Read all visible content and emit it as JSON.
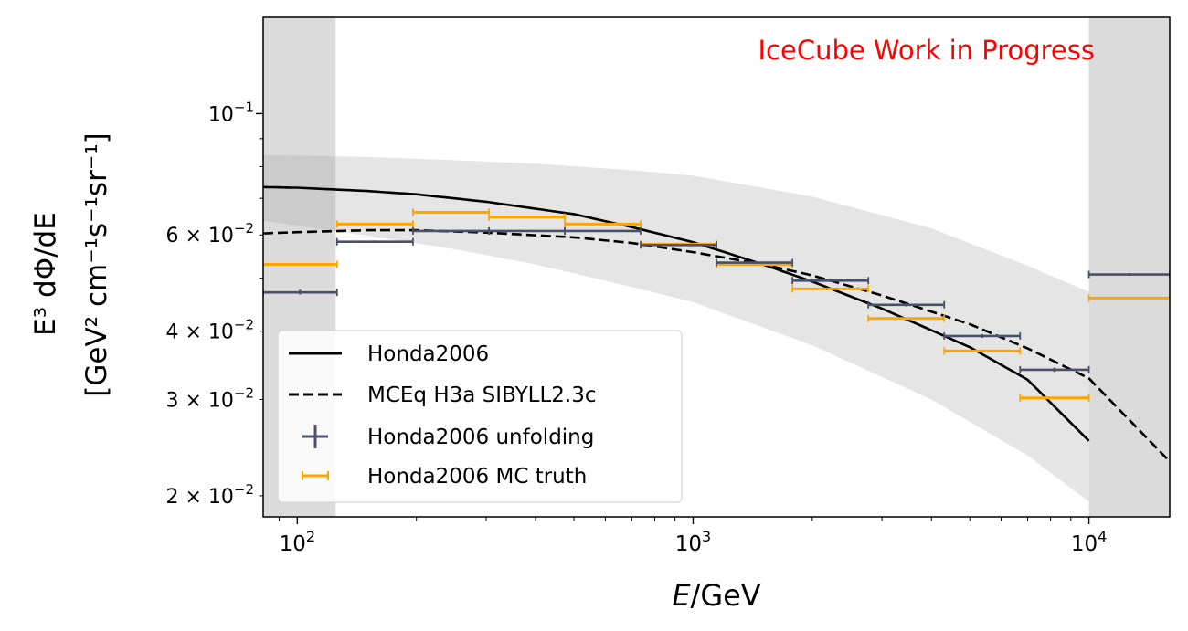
{
  "chart_data": {
    "type": "line",
    "annotation": "IceCube Work in Progress",
    "annotation_color": "#ff0000",
    "xlabel_italic": "E",
    "xlabel_rest": "/GeV",
    "ylabel_line1": "E³ dΦ/dE",
    "ylabel_line2": "[GeV² cm⁻¹s⁻¹sr⁻¹]",
    "xscale": "log",
    "yscale": "log",
    "xlim": [
      82,
      16000
    ],
    "ylim": [
      0.0183,
      0.15
    ],
    "x_ticks": [
      {
        "value": 100,
        "base": "10",
        "exp": "2"
      },
      {
        "value": 1000,
        "base": "10",
        "exp": "3"
      },
      {
        "value": 10000,
        "base": "10",
        "exp": "4"
      }
    ],
    "y_ticks": [
      {
        "value": 0.1,
        "label": "10",
        "exp": "−1"
      },
      {
        "value": 0.06,
        "label": "6 × 10",
        "exp": "−2"
      },
      {
        "value": 0.04,
        "label": "4 × 10",
        "exp": "−2"
      },
      {
        "value": 0.03,
        "label": "3 × 10",
        "exp": "−2"
      },
      {
        "value": 0.02,
        "label": "2 × 10",
        "exp": "−2"
      }
    ],
    "shaded_regions": [
      [
        82,
        125
      ],
      [
        10000,
        16000
      ]
    ],
    "uncertainty_band": {
      "x": [
        82,
        100,
        150,
        250,
        400,
        700,
        1000,
        2000,
        4000,
        7000,
        10000
      ],
      "lower": [
        0.0637,
        0.0624,
        0.0598,
        0.0565,
        0.053,
        0.0482,
        0.0452,
        0.0377,
        0.03,
        0.0237,
        0.0195
      ],
      "upper": [
        0.084,
        0.0838,
        0.0833,
        0.0822,
        0.081,
        0.0788,
        0.077,
        0.0705,
        0.0617,
        0.0527,
        0.0472
      ]
    },
    "series": [
      {
        "name": "Honda2006",
        "style": "solid",
        "color": "#000000",
        "x": [
          82,
          100,
          150,
          200,
          300,
          500,
          700,
          1000,
          1500,
          2000,
          3000,
          5000,
          7000,
          10000
        ],
        "values": [
          0.0734,
          0.0732,
          0.0722,
          0.0712,
          0.069,
          0.0655,
          0.062,
          0.0582,
          0.053,
          0.0493,
          0.044,
          0.0374,
          0.0326,
          0.0252
        ]
      },
      {
        "name": "MCEq H3a SIBYLL2.3c",
        "style": "dashed",
        "color": "#000000",
        "x": [
          82,
          100,
          150,
          200,
          300,
          500,
          700,
          1000,
          1500,
          2000,
          3000,
          5000,
          7000,
          10000,
          16000
        ],
        "values": [
          0.0604,
          0.0607,
          0.0612,
          0.0612,
          0.0606,
          0.0594,
          0.058,
          0.0558,
          0.053,
          0.0506,
          0.0465,
          0.0412,
          0.0372,
          0.0328,
          0.0231
        ]
      }
    ],
    "unfolding": {
      "name": "Honda2006 unfolding",
      "color": "#4a5068",
      "bins": [
        {
          "xlo": 82,
          "xhi": 126,
          "y": 0.0471,
          "ylo": 0.0467,
          "yhi": 0.0476
        },
        {
          "xlo": 126,
          "xhi": 196,
          "y": 0.0583,
          "ylo": 0.058,
          "yhi": 0.0586
        },
        {
          "xlo": 196,
          "xhi": 305,
          "y": 0.061,
          "ylo": 0.0608,
          "yhi": 0.0612
        },
        {
          "xlo": 305,
          "xhi": 474,
          "y": 0.061,
          "ylo": 0.0608,
          "yhi": 0.0612
        },
        {
          "xlo": 474,
          "xhi": 737,
          "y": 0.061,
          "ylo": 0.0608,
          "yhi": 0.0612
        },
        {
          "xlo": 737,
          "xhi": 1146,
          "y": 0.0575,
          "ylo": 0.0573,
          "yhi": 0.0577
        },
        {
          "xlo": 1146,
          "xhi": 1782,
          "y": 0.0534,
          "ylo": 0.0531,
          "yhi": 0.0537
        },
        {
          "xlo": 1782,
          "xhi": 2771,
          "y": 0.0495,
          "ylo": 0.0492,
          "yhi": 0.0498
        },
        {
          "xlo": 2771,
          "xhi": 4309,
          "y": 0.0447,
          "ylo": 0.0444,
          "yhi": 0.045
        },
        {
          "xlo": 4309,
          "xhi": 6700,
          "y": 0.0392,
          "ylo": 0.0389,
          "yhi": 0.0395
        },
        {
          "xlo": 6700,
          "xhi": 10000,
          "y": 0.034,
          "ylo": 0.0337,
          "yhi": 0.0343
        },
        {
          "xlo": 10000,
          "xhi": 16000,
          "y": 0.0508,
          "ylo": 0.0505,
          "yhi": 0.0511
        }
      ]
    },
    "mc_truth": {
      "name": "Honda2006 MC truth",
      "color": "#ffa500",
      "bins": [
        {
          "xlo": 82,
          "xhi": 126,
          "y": 0.053
        },
        {
          "xlo": 126,
          "xhi": 196,
          "y": 0.0628
        },
        {
          "xlo": 196,
          "xhi": 305,
          "y": 0.066
        },
        {
          "xlo": 305,
          "xhi": 474,
          "y": 0.0647
        },
        {
          "xlo": 474,
          "xhi": 737,
          "y": 0.0628
        },
        {
          "xlo": 737,
          "xhi": 1146,
          "y": 0.0577
        },
        {
          "xlo": 1146,
          "xhi": 1782,
          "y": 0.053
        },
        {
          "xlo": 1782,
          "xhi": 2771,
          "y": 0.0478
        },
        {
          "xlo": 2771,
          "xhi": 4309,
          "y": 0.0422
        },
        {
          "xlo": 4309,
          "xhi": 6700,
          "y": 0.0368
        },
        {
          "xlo": 6700,
          "xhi": 10000,
          "y": 0.0302
        },
        {
          "xlo": 10000,
          "xhi": 16000,
          "y": 0.046
        }
      ]
    },
    "legend": {
      "placement": "lower-left",
      "entries": [
        "Honda2006",
        "MCEq H3a SIBYLL2.3c",
        "Honda2006 unfolding",
        "Honda2006 MC truth"
      ]
    }
  }
}
